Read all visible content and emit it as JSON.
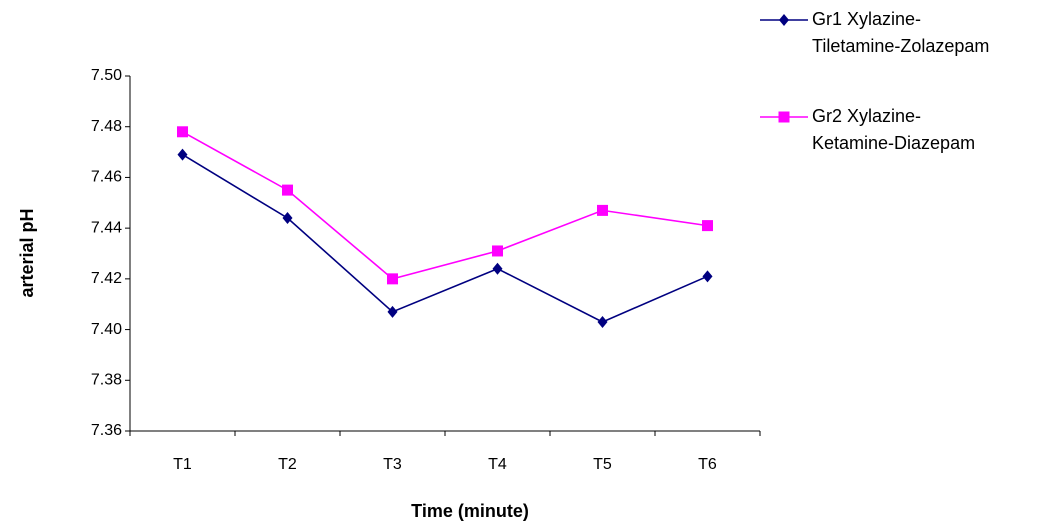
{
  "chart_data": {
    "type": "line",
    "x_label": "Time (minute)",
    "y_label": "arterial pH",
    "categories": [
      "T1",
      "T2",
      "T3",
      "T4",
      "T5",
      "T6"
    ],
    "series": [
      {
        "name": "Gr1 Xylazine-Tiletamine-Zolazepam",
        "color": "#000080",
        "marker": "diamond",
        "values": [
          7.469,
          7.444,
          7.407,
          7.424,
          7.403,
          7.421
        ]
      },
      {
        "name": "Gr2 Xylazine-Ketamine-Diazepam",
        "color": "#ff00ff",
        "marker": "square",
        "values": [
          7.478,
          7.455,
          7.42,
          7.431,
          7.447,
          7.441
        ]
      }
    ],
    "ylim": [
      7.36,
      7.5
    ],
    "yticks": [
      7.36,
      7.38,
      {
        "value": 7.4,
        "label": "7.40"
      },
      7.42,
      7.44,
      7.46,
      7.48,
      {
        "value": 7.5,
        "label": "7.50"
      }
    ],
    "grid": false,
    "legend": "right"
  }
}
